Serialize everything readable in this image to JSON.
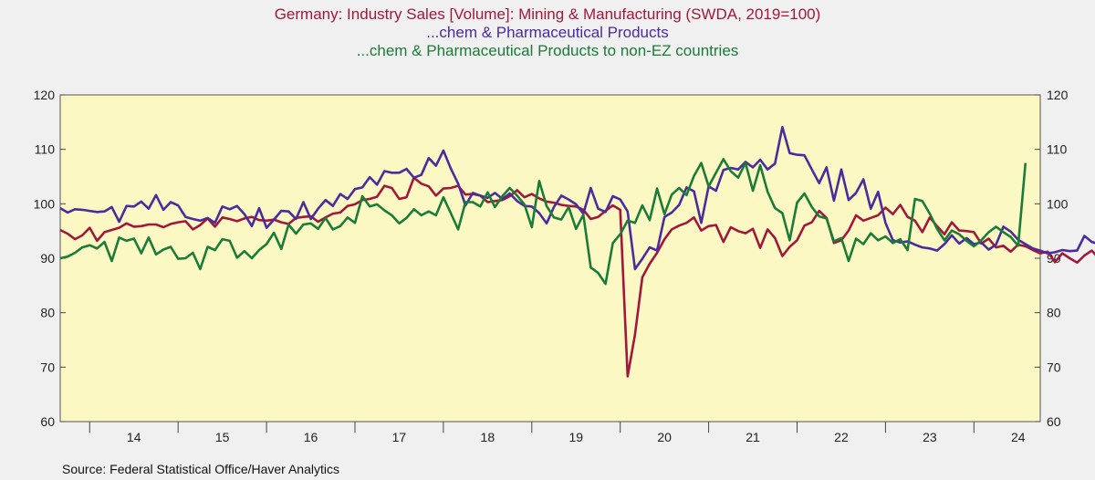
{
  "source": "Source:  Federal Statistical Office/Haver Analytics",
  "chart_data": {
    "type": "line",
    "title": "Germany: Industry Sales [Volume]: Mining & Manufacturing (SWDA, 2019=100)",
    "subtitles": [
      "...chem & Pharmaceutical Products",
      "...chem & Pharmaceutical Products to non-EZ countries"
    ],
    "x_start": 2013.667,
    "x_step": 0.08333,
    "xlim": [
      2013.667,
      2024.75
    ],
    "ylim": [
      60,
      120
    ],
    "y_ticks_left": [
      "120",
      "110",
      "100",
      "90",
      "80",
      "70",
      "60"
    ],
    "y_ticks_right": [
      "120",
      "110",
      "100",
      "90",
      "80",
      "70",
      "60"
    ],
    "x_tick_labels": [
      "14",
      "15",
      "16",
      "17",
      "18",
      "19",
      "20",
      "21",
      "22",
      "23",
      "24"
    ],
    "background": "#fbf8c4",
    "grid": false,
    "series": [
      {
        "color": "#a0183c",
        "values": [
          95.2,
          94.5,
          93.5,
          94.2,
          95.6,
          93.2,
          94.8,
          95.2,
          95.6,
          96.4,
          95.8,
          95.9,
          96.2,
          96.2,
          95.7,
          96.3,
          96.6,
          96.8,
          95.3,
          96.1,
          97.3,
          95.8,
          97.5,
          97.2,
          96.8,
          97.3,
          97.6,
          97.0,
          96.9,
          97.1,
          96.6,
          96.3,
          97.4,
          97.6,
          97.7,
          96.7,
          97.5,
          98.2,
          98.4,
          99.6,
          99.9,
          100.7,
          100.9,
          101.3,
          103.3,
          102.9,
          100.9,
          101.2,
          104.8,
          103.7,
          103.2,
          101.5,
          102.8,
          102.9,
          103.3,
          101.7,
          101.8,
          101.5,
          100.3,
          100.5,
          100.7,
          101.4,
          102.5,
          101.2,
          101.8,
          101.0,
          100.4,
          100.2,
          99.8,
          99.6,
          99.5,
          98.9,
          97.2,
          97.6,
          98.7,
          99.7,
          98.9,
          68.3,
          76.0,
          86.5,
          89.0,
          91.0,
          93.5,
          95.3,
          96.0,
          96.5,
          97.5,
          95.1,
          95.9,
          96.1,
          93.0,
          95.7,
          95.0,
          94.6,
          95.4,
          91.9,
          95.3,
          93.7,
          90.4,
          92.1,
          93.3,
          96.0,
          96.6,
          98.7,
          97.4,
          92.8,
          93.3,
          95.1,
          97.9,
          96.9,
          97.4,
          97.9,
          99.3,
          98.1,
          99.8,
          97.6,
          96.9,
          94.8,
          97.5,
          95.9,
          94.4,
          96.6,
          95.1,
          95.0,
          94.8,
          92.7,
          93.6,
          92.0,
          92.3,
          91.2,
          92.5,
          92.2,
          91.5,
          90.9,
          91.2,
          89.3,
          90.9,
          90.0,
          89.2,
          90.5,
          91.4,
          89.9,
          90.4,
          92.2
        ]
      },
      {
        "color": "#4b2c9c",
        "values": [
          99.2,
          98.4,
          99.0,
          98.9,
          98.7,
          98.5,
          98.6,
          99.4,
          96.7,
          99.6,
          99.5,
          100.4,
          99.1,
          101.6,
          98.9,
          100.3,
          99.7,
          97.6,
          97.2,
          96.9,
          97.4,
          96.5,
          99.5,
          99.0,
          99.6,
          98.1,
          95.9,
          99.2,
          95.6,
          97.1,
          98.7,
          98.6,
          97.2,
          100.3,
          97.2,
          99.1,
          100.7,
          99.6,
          101.8,
          100.9,
          102.7,
          103.0,
          104.9,
          103.5,
          106.0,
          105.7,
          105.7,
          106.4,
          104.8,
          105.3,
          108.4,
          107.0,
          109.8,
          106.5,
          103.7,
          99.7,
          102.0,
          101.5,
          101.1,
          102.0,
          100.9,
          101.9,
          100.5,
          99.6,
          99.5,
          98.3,
          96.4,
          99.4,
          101.5,
          100.8,
          99.9,
          98.2,
          102.9,
          99.1,
          98.5,
          101.4,
          100.8,
          98.6,
          88.0,
          89.9,
          92.0,
          91.4,
          97.6,
          98.4,
          99.8,
          103.0,
          102.3,
          96.5,
          103.2,
          102.4,
          106.2,
          106.6,
          106.3,
          107.7,
          106.7,
          108.1,
          106.3,
          107.4,
          114.1,
          109.3,
          109.0,
          108.9,
          106.3,
          103.8,
          106.7,
          100.6,
          106.3,
          100.7,
          102.0,
          104.5,
          99.1,
          102.2,
          96.5,
          93.3,
          92.9,
          93.1,
          92.5,
          92.0,
          91.8,
          91.4,
          92.6,
          94.2,
          92.7,
          93.7,
          92.6,
          92.9,
          91.6,
          92.5,
          95.8,
          94.9,
          93.4,
          92.6,
          91.8,
          91.4,
          90.9,
          91.1,
          91.5,
          91.3,
          91.4,
          94.1,
          93.0,
          92.6,
          98.5
        ]
      },
      {
        "color": "#1a7c38",
        "values": [
          90.0,
          90.3,
          91.0,
          92.0,
          92.4,
          91.8,
          93.0,
          89.5,
          93.8,
          93.2,
          93.6,
          90.9,
          93.8,
          90.7,
          91.6,
          92.1,
          89.9,
          90.0,
          91.0,
          88.0,
          92.1,
          91.5,
          93.5,
          93.2,
          90.1,
          91.3,
          90.0,
          91.5,
          92.6,
          94.7,
          91.7,
          96.2,
          94.5,
          96.2,
          96.4,
          95.4,
          97.4,
          95.3,
          95.9,
          97.5,
          96.5,
          101.4,
          99.5,
          99.9,
          98.8,
          97.9,
          96.4,
          97.4,
          99.0,
          97.9,
          98.6,
          97.9,
          101.2,
          98.3,
          95.3,
          100.3,
          100.3,
          99.5,
          102.1,
          99.4,
          101.4,
          102.9,
          101.5,
          99.9,
          95.7,
          104.2,
          99.6,
          97.5,
          97.1,
          99.4,
          95.4,
          98.0,
          88.3,
          87.3,
          85.3,
          92.8,
          94.4,
          96.9,
          96.5,
          99.7,
          97.0,
          102.8,
          98.1,
          101.7,
          102.9,
          101.6,
          105.1,
          107.5,
          103.2,
          105.7,
          108.2,
          106.0,
          104.8,
          107.5,
          102.4,
          107.1,
          102.2,
          99.2,
          98.3,
          93.3,
          100.2,
          101.9,
          99.4,
          97.7,
          97.3,
          93.1,
          93.7,
          89.5,
          93.6,
          92.6,
          94.6,
          93.3,
          94.0,
          92.8,
          93.5,
          91.5,
          100.9,
          100.5,
          98.2,
          95.4,
          93.3,
          95.1,
          94.4,
          93.2,
          92.2,
          93.3,
          94.8,
          95.8,
          94.8,
          93.9,
          92.3,
          107.5
        ]
      }
    ]
  }
}
